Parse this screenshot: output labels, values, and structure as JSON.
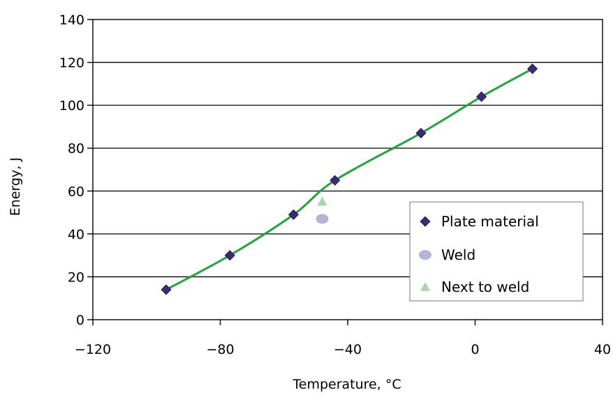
{
  "chart_data": {
    "type": "scatter",
    "title": "",
    "xlabel": "Temperature, °C",
    "ylabel": "Energy, J",
    "xlim": [
      -120,
      40
    ],
    "ylim": [
      0,
      140
    ],
    "x_ticks": [
      -120,
      -80,
      -40,
      0,
      40
    ],
    "y_ticks": [
      0,
      20,
      40,
      60,
      80,
      100,
      120,
      140
    ],
    "x_tick_labels": [
      "−120",
      "−80",
      "−40",
      "0",
      "40"
    ],
    "y_tick_labels": [
      "0",
      "20",
      "40",
      "60",
      "80",
      "100",
      "120",
      "140"
    ],
    "grid": "horizontal",
    "legend_position": "lower-right",
    "series": [
      {
        "name": "Plate material",
        "marker": "diamond",
        "color": "#3b2a7a",
        "points": [
          {
            "x": -97,
            "y": 14
          },
          {
            "x": -77,
            "y": 30
          },
          {
            "x": -57,
            "y": 49
          },
          {
            "x": -44,
            "y": 65
          },
          {
            "x": -17,
            "y": 87
          },
          {
            "x": 2,
            "y": 104
          },
          {
            "x": 18,
            "y": 117
          }
        ]
      },
      {
        "name": "Weld",
        "marker": "circle",
        "color": "#b4b4d8",
        "points": [
          {
            "x": -48,
            "y": 47
          }
        ]
      },
      {
        "name": "Next to weld",
        "marker": "triangle",
        "color": "#a8d4a8",
        "points": [
          {
            "x": -48,
            "y": 55
          }
        ]
      }
    ],
    "trend_line": {
      "color": "#1fa53a",
      "points": [
        {
          "x": -97,
          "y": 14
        },
        {
          "x": -77,
          "y": 30
        },
        {
          "x": -57,
          "y": 49
        },
        {
          "x": -44,
          "y": 65
        },
        {
          "x": -17,
          "y": 87
        },
        {
          "x": 2,
          "y": 104
        },
        {
          "x": 18,
          "y": 117
        }
      ]
    }
  }
}
